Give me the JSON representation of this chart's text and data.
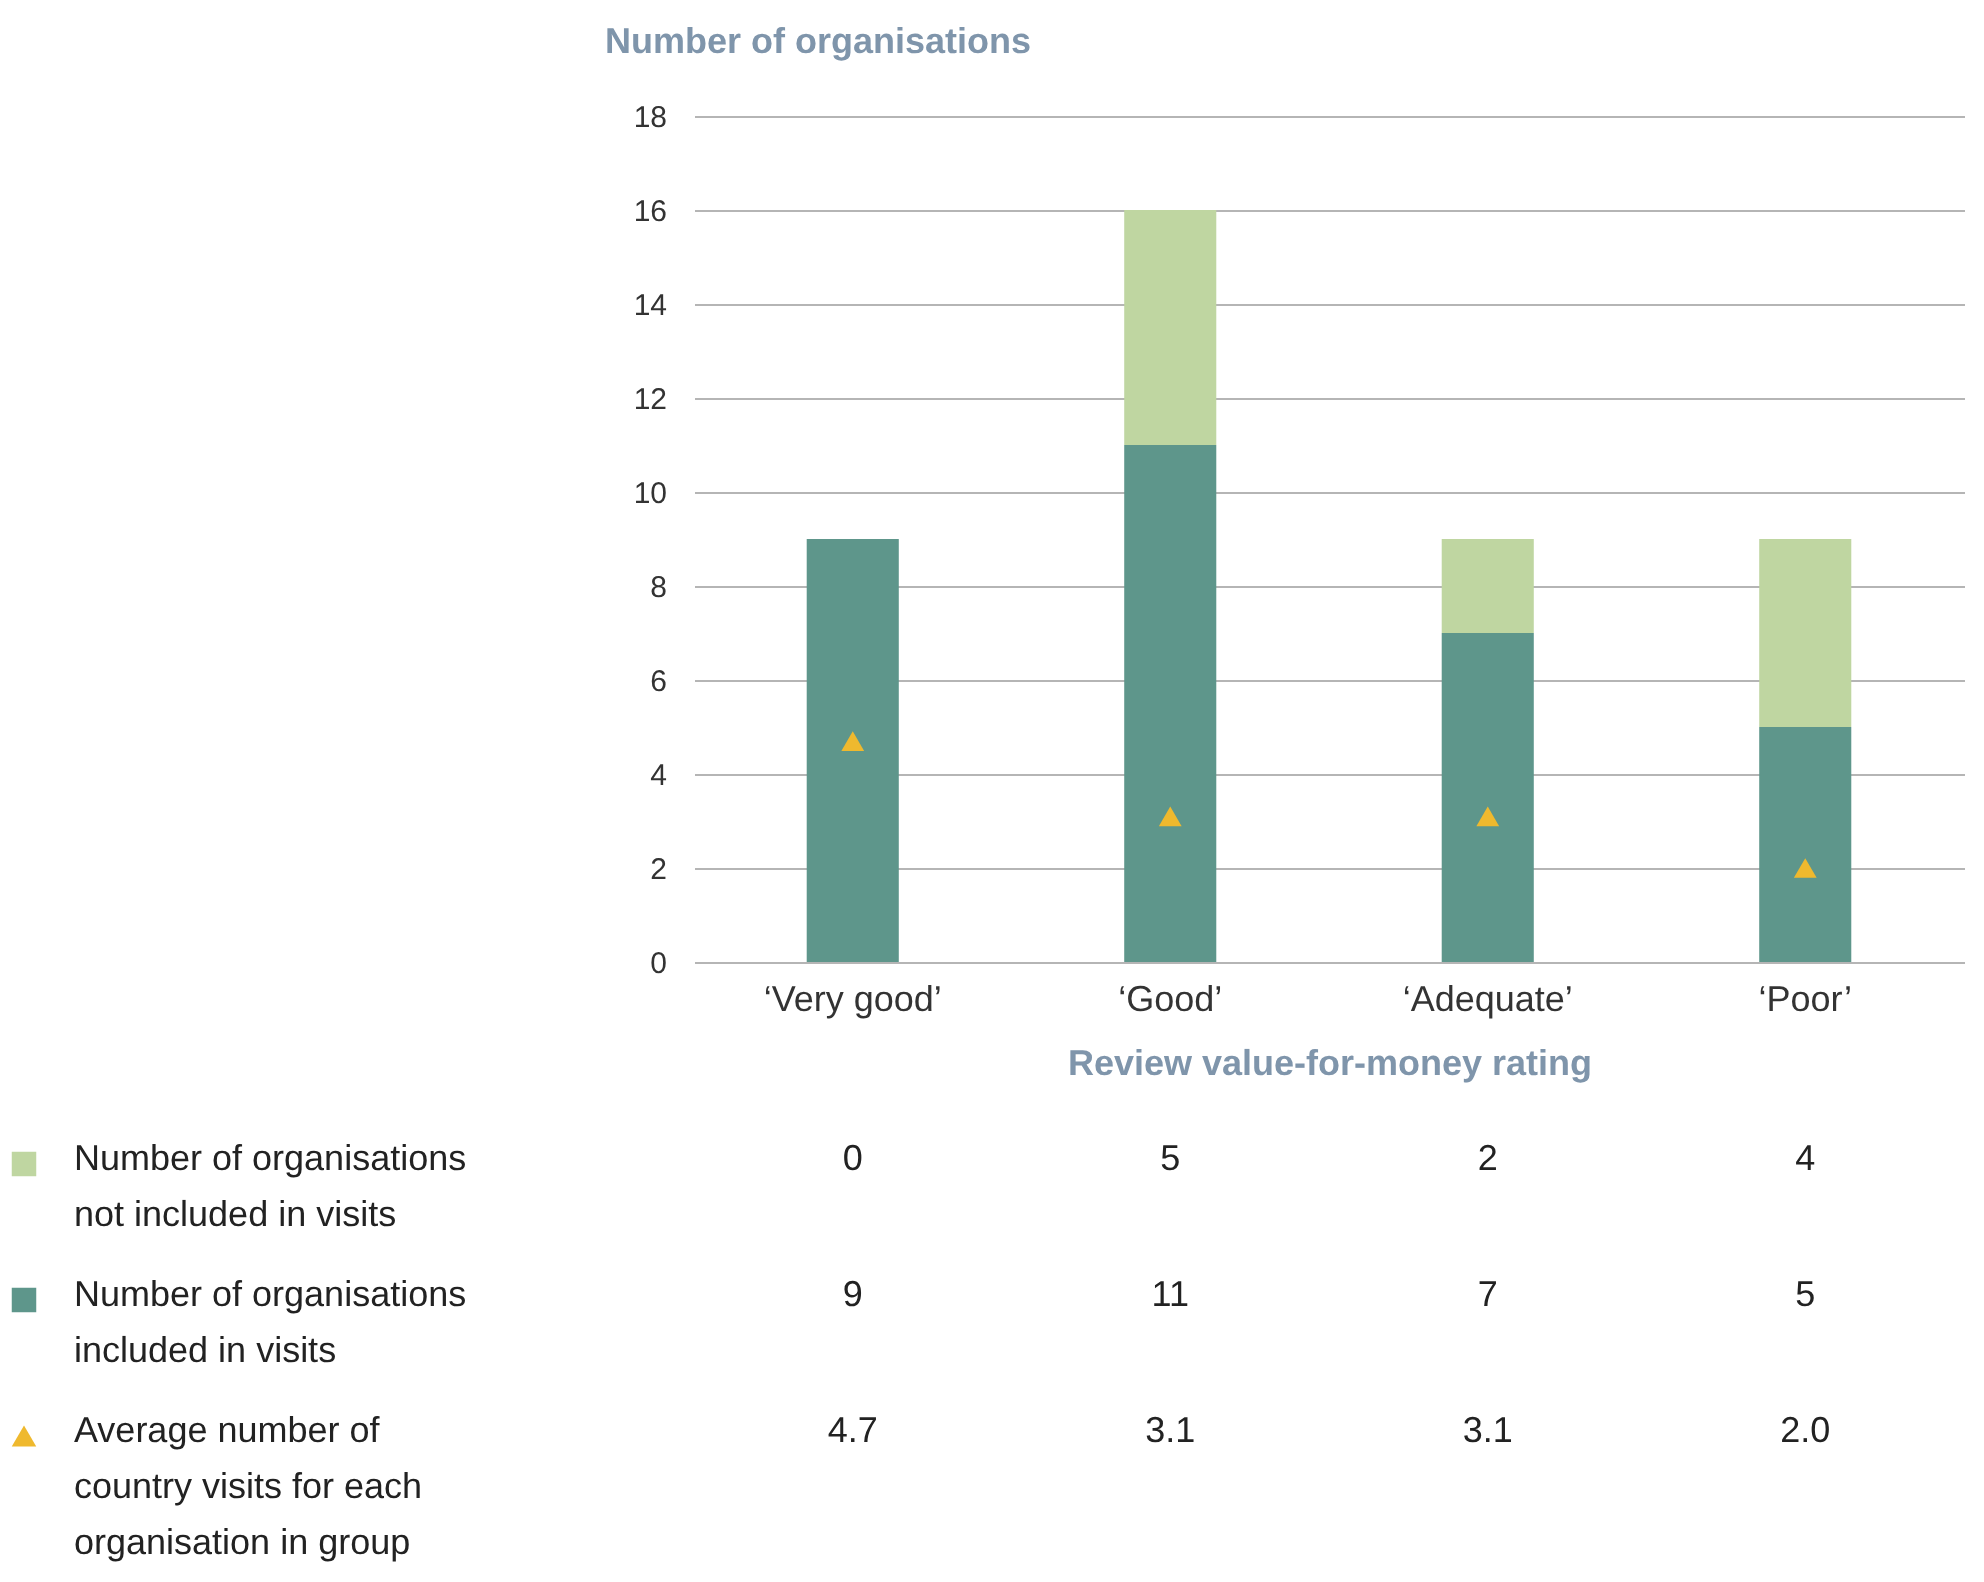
{
  "chart_data": {
    "type": "bar",
    "stacked": true,
    "ylabel": "Number of organisations",
    "xlabel": "Review value-for-money rating",
    "categories": [
      "‘Very good’",
      "‘Good’",
      "‘Adequate’",
      "‘Poor’"
    ],
    "series": [
      {
        "name": "Number of organisations included in visits",
        "color": "#5e968b",
        "values": [
          9,
          11,
          7,
          5
        ]
      },
      {
        "name": "Number of organisations not included in visits",
        "color": "#bfd6a1",
        "values": [
          0,
          5,
          2,
          4
        ]
      },
      {
        "name": "Average number of country visits for each organisation in group",
        "type": "scatter",
        "marker": "triangle",
        "color": "#efb92e",
        "values": [
          4.7,
          3.1,
          3.1,
          2.0
        ]
      }
    ],
    "ylim": [
      0,
      18
    ],
    "yticks": [
      0,
      2,
      4,
      6,
      8,
      10,
      12,
      14,
      16,
      18
    ],
    "grid": "y",
    "legend": "bottom left",
    "annotations": [
      "0",
      "5",
      "2",
      "4",
      "9",
      "11",
      "7",
      "5",
      "4.7",
      "3.1",
      "3.1",
      "2.0"
    ]
  }
}
